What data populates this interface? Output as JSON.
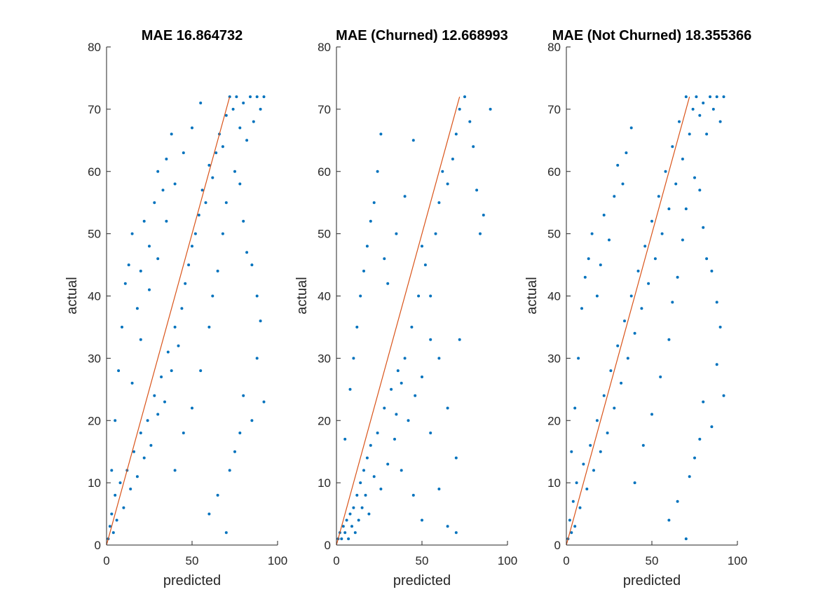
{
  "chart_data": [
    {
      "type": "scatter",
      "title": "MAE 16.864732",
      "xlabel": "predicted",
      "ylabel": "actual",
      "xlim": [
        0,
        100
      ],
      "ylim": [
        0,
        80
      ],
      "xticks": [
        "0",
        "50",
        "100"
      ],
      "yticks": [
        "0",
        "10",
        "20",
        "30",
        "40",
        "50",
        "60",
        "70",
        "80"
      ],
      "grid": false,
      "point_color": "#0072BD",
      "line_color": "#D95319",
      "fit_line": {
        "x": [
          0,
          72
        ],
        "y": [
          0,
          72
        ]
      },
      "points": [
        [
          1,
          1
        ],
        [
          2,
          3
        ],
        [
          3,
          5
        ],
        [
          4,
          2
        ],
        [
          5,
          8
        ],
        [
          6,
          4
        ],
        [
          8,
          10
        ],
        [
          10,
          6
        ],
        [
          12,
          12
        ],
        [
          14,
          9
        ],
        [
          16,
          15
        ],
        [
          18,
          11
        ],
        [
          20,
          18
        ],
        [
          22,
          14
        ],
        [
          24,
          20
        ],
        [
          26,
          16
        ],
        [
          28,
          24
        ],
        [
          30,
          21
        ],
        [
          32,
          27
        ],
        [
          34,
          23
        ],
        [
          36,
          31
        ],
        [
          38,
          28
        ],
        [
          40,
          35
        ],
        [
          42,
          32
        ],
        [
          44,
          38
        ],
        [
          46,
          42
        ],
        [
          48,
          45
        ],
        [
          50,
          48
        ],
        [
          52,
          50
        ],
        [
          54,
          53
        ],
        [
          56,
          57
        ],
        [
          58,
          55
        ],
        [
          60,
          61
        ],
        [
          62,
          59
        ],
        [
          64,
          63
        ],
        [
          66,
          66
        ],
        [
          68,
          64
        ],
        [
          70,
          69
        ],
        [
          72,
          72
        ],
        [
          74,
          70
        ],
        [
          76,
          72
        ],
        [
          78,
          67
        ],
        [
          80,
          71
        ],
        [
          82,
          65
        ],
        [
          84,
          72
        ],
        [
          86,
          68
        ],
        [
          88,
          72
        ],
        [
          90,
          70
        ],
        [
          92,
          72
        ],
        [
          3,
          12
        ],
        [
          5,
          20
        ],
        [
          7,
          28
        ],
        [
          9,
          35
        ],
        [
          11,
          42
        ],
        [
          13,
          45
        ],
        [
          15,
          50
        ],
        [
          18,
          38
        ],
        [
          20,
          44
        ],
        [
          22,
          52
        ],
        [
          25,
          48
        ],
        [
          28,
          55
        ],
        [
          30,
          60
        ],
        [
          33,
          57
        ],
        [
          35,
          62
        ],
        [
          38,
          66
        ],
        [
          15,
          26
        ],
        [
          20,
          33
        ],
        [
          25,
          41
        ],
        [
          30,
          46
        ],
        [
          35,
          52
        ],
        [
          40,
          58
        ],
        [
          45,
          63
        ],
        [
          50,
          67
        ],
        [
          55,
          71
        ],
        [
          40,
          12
        ],
        [
          45,
          18
        ],
        [
          50,
          22
        ],
        [
          55,
          28
        ],
        [
          60,
          35
        ],
        [
          62,
          40
        ],
        [
          65,
          44
        ],
        [
          68,
          50
        ],
        [
          70,
          55
        ],
        [
          75,
          60
        ],
        [
          78,
          58
        ],
        [
          80,
          52
        ],
        [
          82,
          47
        ],
        [
          85,
          45
        ],
        [
          88,
          40
        ],
        [
          90,
          36
        ],
        [
          60,
          5
        ],
        [
          65,
          8
        ],
        [
          70,
          2
        ],
        [
          72,
          12
        ],
        [
          75,
          15
        ],
        [
          78,
          18
        ],
        [
          80,
          24
        ],
        [
          85,
          20
        ],
        [
          88,
          30
        ],
        [
          92,
          23
        ]
      ]
    },
    {
      "type": "scatter",
      "title": "MAE (Churned) 12.668993",
      "xlabel": "predicted",
      "ylabel": "actual",
      "xlim": [
        0,
        100
      ],
      "ylim": [
        0,
        80
      ],
      "xticks": [
        "0",
        "50",
        "100"
      ],
      "yticks": [
        "0",
        "10",
        "20",
        "30",
        "40",
        "50",
        "60",
        "70",
        "80"
      ],
      "grid": false,
      "point_color": "#0072BD",
      "line_color": "#D95319",
      "fit_line": {
        "x": [
          0,
          72
        ],
        "y": [
          0,
          72
        ]
      },
      "points": [
        [
          1,
          1
        ],
        [
          2,
          2
        ],
        [
          3,
          1
        ],
        [
          4,
          3
        ],
        [
          5,
          2
        ],
        [
          6,
          4
        ],
        [
          7,
          1
        ],
        [
          8,
          5
        ],
        [
          9,
          3
        ],
        [
          10,
          6
        ],
        [
          11,
          2
        ],
        [
          12,
          8
        ],
        [
          13,
          4
        ],
        [
          14,
          10
        ],
        [
          15,
          6
        ],
        [
          16,
          12
        ],
        [
          17,
          8
        ],
        [
          18,
          14
        ],
        [
          19,
          5
        ],
        [
          20,
          16
        ],
        [
          22,
          11
        ],
        [
          24,
          18
        ],
        [
          26,
          9
        ],
        [
          28,
          22
        ],
        [
          30,
          13
        ],
        [
          32,
          25
        ],
        [
          34,
          17
        ],
        [
          36,
          28
        ],
        [
          38,
          12
        ],
        [
          40,
          30
        ],
        [
          42,
          20
        ],
        [
          44,
          35
        ],
        [
          46,
          24
        ],
        [
          48,
          40
        ],
        [
          50,
          27
        ],
        [
          52,
          45
        ],
        [
          55,
          33
        ],
        [
          58,
          50
        ],
        [
          60,
          55
        ],
        [
          62,
          60
        ],
        [
          65,
          58
        ],
        [
          68,
          62
        ],
        [
          70,
          66
        ],
        [
          72,
          70
        ],
        [
          75,
          72
        ],
        [
          78,
          68
        ],
        [
          80,
          64
        ],
        [
          82,
          57
        ],
        [
          84,
          50
        ],
        [
          86,
          53
        ],
        [
          90,
          70
        ],
        [
          5,
          17
        ],
        [
          8,
          25
        ],
        [
          10,
          30
        ],
        [
          12,
          35
        ],
        [
          14,
          40
        ],
        [
          16,
          44
        ],
        [
          18,
          48
        ],
        [
          20,
          52
        ],
        [
          22,
          55
        ],
        [
          24,
          60
        ],
        [
          26,
          66
        ],
        [
          28,
          46
        ],
        [
          30,
          42
        ],
        [
          35,
          50
        ],
        [
          40,
          56
        ],
        [
          45,
          65
        ],
        [
          50,
          48
        ],
        [
          55,
          40
        ],
        [
          60,
          30
        ],
        [
          65,
          22
        ],
        [
          70,
          14
        ],
        [
          72,
          33
        ],
        [
          45,
          8
        ],
        [
          50,
          4
        ],
        [
          55,
          18
        ],
        [
          60,
          9
        ],
        [
          65,
          3
        ],
        [
          70,
          2
        ],
        [
          35,
          21
        ],
        [
          38,
          26
        ]
      ]
    },
    {
      "type": "scatter",
      "title": "MAE (Not Churned) 18.355366",
      "xlabel": "predicted",
      "ylabel": "actual",
      "xlim": [
        0,
        100
      ],
      "ylim": [
        0,
        80
      ],
      "xticks": [
        "0",
        "50",
        "100"
      ],
      "yticks": [
        "0",
        "10",
        "20",
        "30",
        "40",
        "50",
        "60",
        "70",
        "80"
      ],
      "grid": false,
      "point_color": "#0072BD",
      "line_color": "#D95319",
      "fit_line": {
        "x": [
          0,
          72
        ],
        "y": [
          0,
          72
        ]
      },
      "points": [
        [
          1,
          1
        ],
        [
          2,
          4
        ],
        [
          3,
          2
        ],
        [
          4,
          7
        ],
        [
          5,
          3
        ],
        [
          6,
          10
        ],
        [
          8,
          6
        ],
        [
          10,
          13
        ],
        [
          12,
          9
        ],
        [
          14,
          16
        ],
        [
          16,
          12
        ],
        [
          18,
          20
        ],
        [
          20,
          15
        ],
        [
          22,
          24
        ],
        [
          24,
          18
        ],
        [
          26,
          28
        ],
        [
          28,
          22
        ],
        [
          30,
          32
        ],
        [
          32,
          26
        ],
        [
          34,
          36
        ],
        [
          36,
          30
        ],
        [
          38,
          40
        ],
        [
          40,
          34
        ],
        [
          42,
          44
        ],
        [
          44,
          38
        ],
        [
          46,
          48
        ],
        [
          48,
          42
        ],
        [
          50,
          52
        ],
        [
          52,
          46
        ],
        [
          54,
          56
        ],
        [
          56,
          50
        ],
        [
          58,
          60
        ],
        [
          60,
          54
        ],
        [
          62,
          64
        ],
        [
          64,
          58
        ],
        [
          66,
          68
        ],
        [
          68,
          62
        ],
        [
          70,
          72
        ],
        [
          72,
          66
        ],
        [
          74,
          70
        ],
        [
          76,
          72
        ],
        [
          78,
          69
        ],
        [
          80,
          71
        ],
        [
          82,
          66
        ],
        [
          84,
          72
        ],
        [
          86,
          70
        ],
        [
          88,
          72
        ],
        [
          90,
          68
        ],
        [
          92,
          72
        ],
        [
          3,
          15
        ],
        [
          5,
          22
        ],
        [
          7,
          30
        ],
        [
          9,
          38
        ],
        [
          11,
          43
        ],
        [
          13,
          46
        ],
        [
          15,
          50
        ],
        [
          18,
          40
        ],
        [
          20,
          45
        ],
        [
          22,
          53
        ],
        [
          25,
          49
        ],
        [
          28,
          56
        ],
        [
          30,
          61
        ],
        [
          33,
          58
        ],
        [
          35,
          63
        ],
        [
          38,
          67
        ],
        [
          40,
          10
        ],
        [
          45,
          16
        ],
        [
          50,
          21
        ],
        [
          55,
          27
        ],
        [
          60,
          33
        ],
        [
          62,
          39
        ],
        [
          65,
          43
        ],
        [
          68,
          49
        ],
        [
          70,
          54
        ],
        [
          75,
          59
        ],
        [
          78,
          57
        ],
        [
          80,
          51
        ],
        [
          82,
          46
        ],
        [
          85,
          44
        ],
        [
          88,
          39
        ],
        [
          90,
          35
        ],
        [
          60,
          4
        ],
        [
          65,
          7
        ],
        [
          70,
          1
        ],
        [
          72,
          11
        ],
        [
          75,
          14
        ],
        [
          78,
          17
        ],
        [
          80,
          23
        ],
        [
          85,
          19
        ],
        [
          88,
          29
        ],
        [
          92,
          24
        ]
      ]
    }
  ]
}
